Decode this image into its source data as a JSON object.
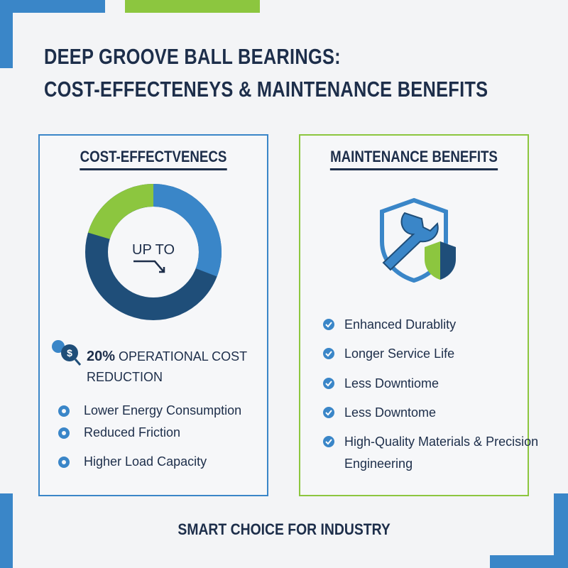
{
  "header": {
    "title_lines": [
      "DEEP GROOVE BALL BEARINGS:",
      "COST-EFFECTENEYS & MAINTENANCE BENEFITS"
    ]
  },
  "left_panel": {
    "heading": "COST-EFFECTVENECS",
    "donut_label": "UP TO",
    "highlight_value": "20%",
    "highlight_text": "OPERATIONAL COST REDUCTION",
    "items": [
      "Lower Energy Consumption",
      "Reduced Friction",
      "Higher Load Capacity"
    ]
  },
  "right_panel": {
    "heading": "MAINTENANCE BENEFITS",
    "items": [
      "Enhanced Durablity",
      "Longer Service Life",
      "Less Downtiome",
      "Less Downtome",
      "High-Quality Materials & Precision Engineering"
    ]
  },
  "footer": {
    "text": "SMART CHOICE FOR INDUSTRY"
  }
}
